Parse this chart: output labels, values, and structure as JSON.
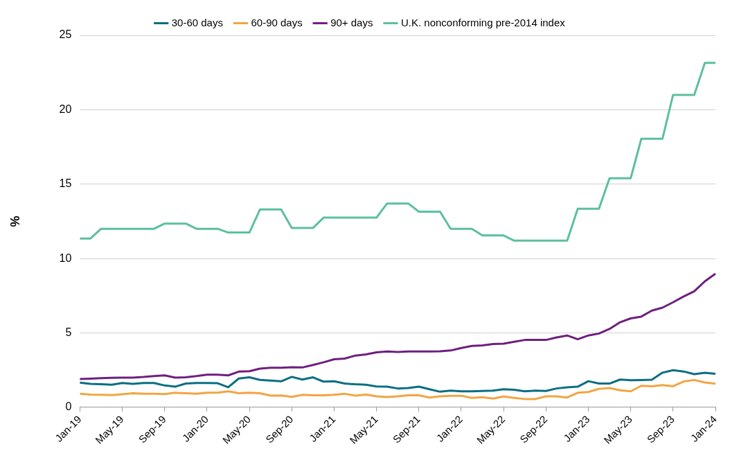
{
  "chart_data": {
    "type": "line",
    "ylabel": "%",
    "legend": "top",
    "grid": "y",
    "ylim": [
      0,
      25
    ],
    "yticks": [
      0,
      5,
      10,
      15,
      20,
      25
    ],
    "marker": "none",
    "line_style": "solid",
    "categories": [
      "Jan-19",
      null,
      null,
      null,
      "May-19",
      null,
      null,
      null,
      "Sep-19",
      null,
      null,
      null,
      "Jan-20",
      null,
      null,
      null,
      "May-20",
      null,
      null,
      null,
      "Sep-20",
      null,
      null,
      null,
      "Jan-21",
      null,
      null,
      null,
      "May-21",
      null,
      null,
      null,
      "Sep-21",
      null,
      null,
      null,
      "Jan-22",
      null,
      null,
      null,
      "May-22",
      null,
      null,
      null,
      "Sep-22",
      null,
      null,
      null,
      "Jan-23",
      null,
      null,
      null,
      "May-23",
      null,
      null,
      null,
      "Sep-23",
      null,
      null,
      null,
      "Jan-24"
    ],
    "series": [
      {
        "name": "30-60 days",
        "color": "#0a6e82",
        "values": [
          1.66,
          1.58,
          1.55,
          1.52,
          1.64,
          1.58,
          1.64,
          1.64,
          1.47,
          1.39,
          1.6,
          1.64,
          1.64,
          1.62,
          1.35,
          1.94,
          2.02,
          1.85,
          1.8,
          1.75,
          2.05,
          1.87,
          2.02,
          1.73,
          1.75,
          1.6,
          1.55,
          1.52,
          1.4,
          1.39,
          1.27,
          1.3,
          1.39,
          1.22,
          1.05,
          1.13,
          1.08,
          1.08,
          1.1,
          1.13,
          1.22,
          1.18,
          1.08,
          1.13,
          1.1,
          1.27,
          1.35,
          1.39,
          1.76,
          1.6,
          1.6,
          1.87,
          1.82,
          1.84,
          1.86,
          2.33,
          2.5,
          2.41,
          2.23,
          2.32,
          2.25
        ]
      },
      {
        "name": "60-90 days",
        "color": "#f2a541",
        "values": [
          0.91,
          0.86,
          0.84,
          0.82,
          0.88,
          0.95,
          0.91,
          0.91,
          0.89,
          0.98,
          0.95,
          0.91,
          0.99,
          0.98,
          1.08,
          0.95,
          0.98,
          0.95,
          0.79,
          0.8,
          0.71,
          0.84,
          0.81,
          0.81,
          0.84,
          0.91,
          0.79,
          0.86,
          0.74,
          0.69,
          0.74,
          0.81,
          0.81,
          0.66,
          0.74,
          0.78,
          0.78,
          0.64,
          0.68,
          0.59,
          0.73,
          0.64,
          0.56,
          0.56,
          0.74,
          0.74,
          0.66,
          0.98,
          1.03,
          1.24,
          1.3,
          1.15,
          1.08,
          1.45,
          1.42,
          1.5,
          1.42,
          1.74,
          1.84,
          1.67,
          1.59
        ]
      },
      {
        "name": "90+ days",
        "color": "#6e1f7e",
        "values": [
          1.91,
          1.93,
          1.96,
          1.99,
          2.0,
          2.0,
          2.04,
          2.1,
          2.15,
          2.0,
          2.02,
          2.1,
          2.2,
          2.2,
          2.15,
          2.4,
          2.43,
          2.6,
          2.66,
          2.66,
          2.7,
          2.68,
          2.85,
          3.03,
          3.23,
          3.28,
          3.48,
          3.56,
          3.7,
          3.75,
          3.72,
          3.75,
          3.75,
          3.75,
          3.77,
          3.82,
          3.99,
          4.13,
          4.16,
          4.26,
          4.28,
          4.41,
          4.53,
          4.53,
          4.53,
          4.7,
          4.83,
          4.58,
          4.83,
          4.96,
          5.27,
          5.72,
          5.98,
          6.1,
          6.5,
          6.7,
          7.06,
          7.45,
          7.8,
          8.47,
          8.98
        ]
      },
      {
        "name": "U.K. nonconforming pre-2014 index",
        "color": "#5bbf9f",
        "values": [
          11.35,
          11.35,
          12.0,
          12.0,
          12.0,
          12.0,
          12.0,
          12.0,
          12.35,
          12.35,
          12.35,
          12.0,
          12.0,
          12.0,
          11.75,
          11.75,
          11.75,
          13.3,
          13.3,
          13.3,
          12.05,
          12.05,
          12.05,
          12.75,
          12.75,
          12.75,
          12.75,
          12.75,
          12.75,
          13.7,
          13.7,
          13.7,
          13.15,
          13.15,
          13.15,
          12.0,
          12.0,
          12.0,
          11.55,
          11.55,
          11.55,
          11.2,
          11.2,
          11.2,
          11.2,
          11.2,
          11.2,
          13.35,
          13.35,
          13.35,
          15.4,
          15.4,
          15.4,
          18.05,
          18.05,
          18.05,
          21.0,
          21.0,
          21.0,
          23.15,
          23.15
        ]
      }
    ]
  }
}
